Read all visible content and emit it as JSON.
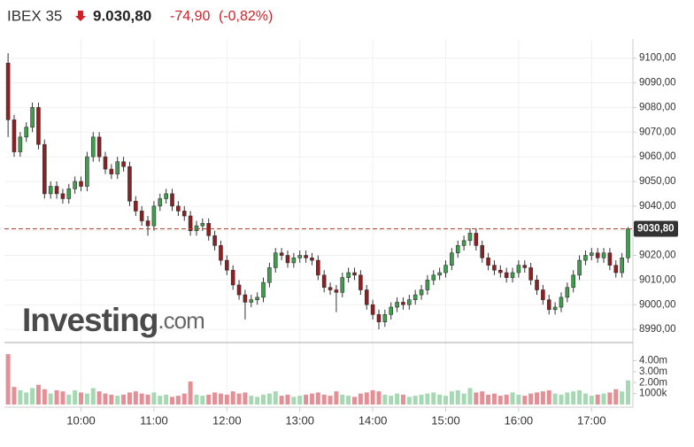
{
  "chart_data": {
    "type": "candlestick",
    "title": "IBEX 35",
    "last": "9.030,80",
    "change": "-74,90",
    "change_pct": "(-0,82%)",
    "watermark": {
      "brand": "Investing",
      "suffix": ".com"
    },
    "up_color": "#3f9e4d",
    "down_color": "#8e1f22",
    "volume_up_color": "#a5d8b3",
    "volume_down_color": "#e38f95",
    "price_line_color": "#c0392b",
    "price_line": {
      "value": 9030.8,
      "label": "9030,80"
    },
    "grid": true,
    "xlim": [
      "08:57",
      "17:34"
    ],
    "xticks": [
      "10:00",
      "11:00",
      "12:00",
      "13:00",
      "14:00",
      "15:00",
      "16:00",
      "17:00"
    ],
    "ylim": [
      8985,
      9106
    ],
    "yticks": [
      {
        "value": 8990,
        "label": "8990,00"
      },
      {
        "value": 9000,
        "label": "9000,00"
      },
      {
        "value": 9010,
        "label": "9010,00"
      },
      {
        "value": 9020,
        "label": "9020,00"
      },
      {
        "value": 9030,
        "label": "9030,00"
      },
      {
        "value": 9040,
        "label": "9040,00"
      },
      {
        "value": 9050,
        "label": "9050,00"
      },
      {
        "value": 9060,
        "label": "9060,00"
      },
      {
        "value": 9070,
        "label": "9070,00"
      },
      {
        "value": 9080,
        "label": "9080,00"
      },
      {
        "value": 9090,
        "label": "9090,00"
      },
      {
        "value": 9100,
        "label": "9100,00"
      }
    ],
    "x": [
      "09:00",
      "09:05",
      "09:10",
      "09:15",
      "09:20",
      "09:25",
      "09:30",
      "09:35",
      "09:40",
      "09:45",
      "09:50",
      "09:55",
      "10:00",
      "10:05",
      "10:10",
      "10:15",
      "10:20",
      "10:25",
      "10:30",
      "10:35",
      "10:40",
      "10:45",
      "10:50",
      "10:55",
      "11:00",
      "11:05",
      "11:10",
      "11:15",
      "11:20",
      "11:25",
      "11:30",
      "11:35",
      "11:40",
      "11:45",
      "11:50",
      "11:55",
      "12:00",
      "12:05",
      "12:10",
      "12:15",
      "12:20",
      "12:25",
      "12:30",
      "12:35",
      "12:40",
      "12:45",
      "12:50",
      "12:55",
      "13:00",
      "13:05",
      "13:10",
      "13:15",
      "13:20",
      "13:25",
      "13:30",
      "13:35",
      "13:40",
      "13:45",
      "13:50",
      "13:55",
      "14:00",
      "14:05",
      "14:10",
      "14:15",
      "14:20",
      "14:25",
      "14:30",
      "14:35",
      "14:40",
      "14:45",
      "14:50",
      "14:55",
      "15:00",
      "15:05",
      "15:10",
      "15:15",
      "15:20",
      "15:25",
      "15:30",
      "15:35",
      "15:40",
      "15:45",
      "15:50",
      "15:55",
      "16:00",
      "16:05",
      "16:10",
      "16:15",
      "16:20",
      "16:25",
      "16:30",
      "16:35",
      "16:40",
      "16:45",
      "16:50",
      "16:55",
      "17:00",
      "17:05",
      "17:10",
      "17:15",
      "17:20",
      "17:25",
      "17:30"
    ],
    "open": [
      9098,
      9075,
      9062,
      9068,
      9072,
      9080,
      9065,
      9045,
      9048,
      9045,
      9043,
      9047,
      9050,
      9048,
      9060,
      9068,
      9060,
      9055,
      9053,
      9058,
      9056,
      9042,
      9038,
      9034,
      9032,
      9040,
      9043,
      9045,
      9040,
      9038,
      9036,
      9030,
      9032,
      9033,
      9028,
      9024,
      9018,
      9014,
      9008,
      9004,
      9001,
      9002,
      9003,
      9009,
      9015,
      9021,
      9020,
      9017,
      9019,
      9020,
      9019,
      9018,
      9012,
      9007,
      9006,
      9005,
      9011,
      9013,
      9012,
      9006,
      9000,
      8996,
      8993,
      8996,
      8999,
      9001,
      9000,
      9002,
      9004,
      9006,
      9010,
      9012,
      9013,
      9016,
      9021,
      9024,
      9026,
      9029,
      9024,
      9019,
      9016,
      9014,
      9013,
      9011,
      9013,
      9016,
      9015,
      9010,
      9006,
      9002,
      8998,
      8999,
      9003,
      9007,
      9012,
      9018,
      9020,
      9021,
      9019,
      9021,
      9016,
      9013,
      9019
    ],
    "high": [
      9102,
      9077,
      9070,
      9074,
      9082,
      9082,
      9067,
      9050,
      9050,
      9047,
      9049,
      9052,
      9052,
      9062,
      9070,
      9070,
      9062,
      9057,
      9060,
      9060,
      9058,
      9044,
      9040,
      9036,
      9042,
      9045,
      9047,
      9047,
      9042,
      9040,
      9038,
      9034,
      9035,
      9035,
      9030,
      9026,
      9020,
      9016,
      9010,
      9006,
      9004,
      9005,
      9011,
      9017,
      9023,
      9023,
      9022,
      9021,
      9022,
      9022,
      9021,
      9020,
      9014,
      9009,
      9008,
      9013,
      9015,
      9015,
      9014,
      9008,
      9002,
      8998,
      8998,
      9001,
      9003,
      9003,
      9004,
      9006,
      9008,
      9012,
      9014,
      9015,
      9018,
      9023,
      9026,
      9028,
      9031,
      9031,
      9026,
      9021,
      9018,
      9016,
      9015,
      9015,
      9018,
      9018,
      9017,
      9012,
      9008,
      9004,
      9001,
      9005,
      9009,
      9014,
      9020,
      9022,
      9023,
      9023,
      9023,
      9023,
      9018,
      9021,
      9031.5
    ],
    "low": [
      9068,
      9060,
      9060,
      9066,
      9070,
      9063,
      9043,
      9043,
      9043,
      9041,
      9041,
      9045,
      9046,
      9046,
      9058,
      9058,
      9053,
      9051,
      9051,
      9054,
      9040,
      9036,
      9032,
      9028,
      9030,
      9038,
      9041,
      9038,
      9036,
      9034,
      9028,
      9028,
      9030,
      9026,
      9022,
      9016,
      9012,
      9006,
      9002,
      8994,
      8999,
      9000,
      9001,
      9007,
      9013,
      9018,
      9015,
      9015,
      9017,
      9017,
      9016,
      9010,
      9005,
      9004,
      8997,
      9003,
      9009,
      9010,
      9004,
      8998,
      8994,
      8990,
      8991,
      8994,
      8997,
      8998,
      8998,
      9000,
      9002,
      9004,
      9008,
      9010,
      9011,
      9014,
      9019,
      9022,
      9024,
      9022,
      9017,
      9014,
      9012,
      9011,
      9009,
      9009,
      9011,
      9013,
      9008,
      9004,
      9000,
      8996,
      8996,
      8997,
      9001,
      9005,
      9010,
      9016,
      9018,
      9017,
      9017,
      9014,
      9011,
      9011,
      9017
    ],
    "close": [
      9075,
      9062,
      9068,
      9072,
      9080,
      9065,
      9045,
      9048,
      9045,
      9043,
      9047,
      9050,
      9048,
      9060,
      9068,
      9060,
      9055,
      9053,
      9058,
      9056,
      9042,
      9038,
      9034,
      9032,
      9040,
      9043,
      9045,
      9040,
      9038,
      9036,
      9030,
      9032,
      9033,
      9028,
      9024,
      9018,
      9014,
      9008,
      9004,
      9001,
      9002,
      9003,
      9009,
      9015,
      9021,
      9020,
      9017,
      9019,
      9020,
      9019,
      9018,
      9012,
      9007,
      9006,
      9005,
      9011,
      9013,
      9012,
      9006,
      9000,
      8996,
      8993,
      8996,
      8999,
      9001,
      9000,
      9002,
      9004,
      9006,
      9010,
      9012,
      9013,
      9016,
      9021,
      9024,
      9026,
      9029,
      9024,
      9019,
      9016,
      9014,
      9013,
      9011,
      9013,
      9016,
      9015,
      9010,
      9006,
      9002,
      8998,
      8999,
      9003,
      9007,
      9012,
      9018,
      9020,
      9021,
      9019,
      9021,
      9016,
      9013,
      9019,
      9030.8
    ],
    "volume": {
      "ylim": [
        0,
        5250000
      ],
      "yticks": [
        {
          "value": 4000000,
          "label": "4.00m"
        },
        {
          "value": 3000000,
          "label": "3.00m"
        },
        {
          "value": 2000000,
          "label": "2.00m"
        },
        {
          "value": 1000000,
          "label": "1000k"
        }
      ],
      "values": [
        4600000,
        1600000,
        1300000,
        1100000,
        1500000,
        1800000,
        1400000,
        1000000,
        1300000,
        1200000,
        900000,
        1300000,
        1100000,
        1000000,
        1500000,
        1200000,
        1000000,
        900000,
        800000,
        900000,
        1100000,
        1200000,
        1000000,
        900000,
        1100000,
        800000,
        900000,
        700000,
        800000,
        1000000,
        2100000,
        900000,
        800000,
        900000,
        1100000,
        1000000,
        900000,
        1200000,
        1000000,
        1100000,
        800000,
        700000,
        900000,
        1000000,
        1200000,
        800000,
        900000,
        700000,
        800000,
        900000,
        1000000,
        1100000,
        900000,
        800000,
        1200000,
        900000,
        800000,
        700000,
        1000000,
        1100000,
        1300000,
        1200000,
        900000,
        800000,
        1000000,
        900000,
        700000,
        800000,
        900000,
        1000000,
        1100000,
        900000,
        800000,
        1200000,
        1300000,
        1000000,
        1500000,
        1100000,
        1200000,
        900000,
        1000000,
        800000,
        900000,
        1100000,
        900000,
        800000,
        1000000,
        1100000,
        1200000,
        1300000,
        1000000,
        900000,
        1100000,
        1200000,
        1300000,
        1000000,
        800000,
        900000,
        1000000,
        1100000,
        1400000,
        1200000,
        2200000
      ]
    }
  }
}
